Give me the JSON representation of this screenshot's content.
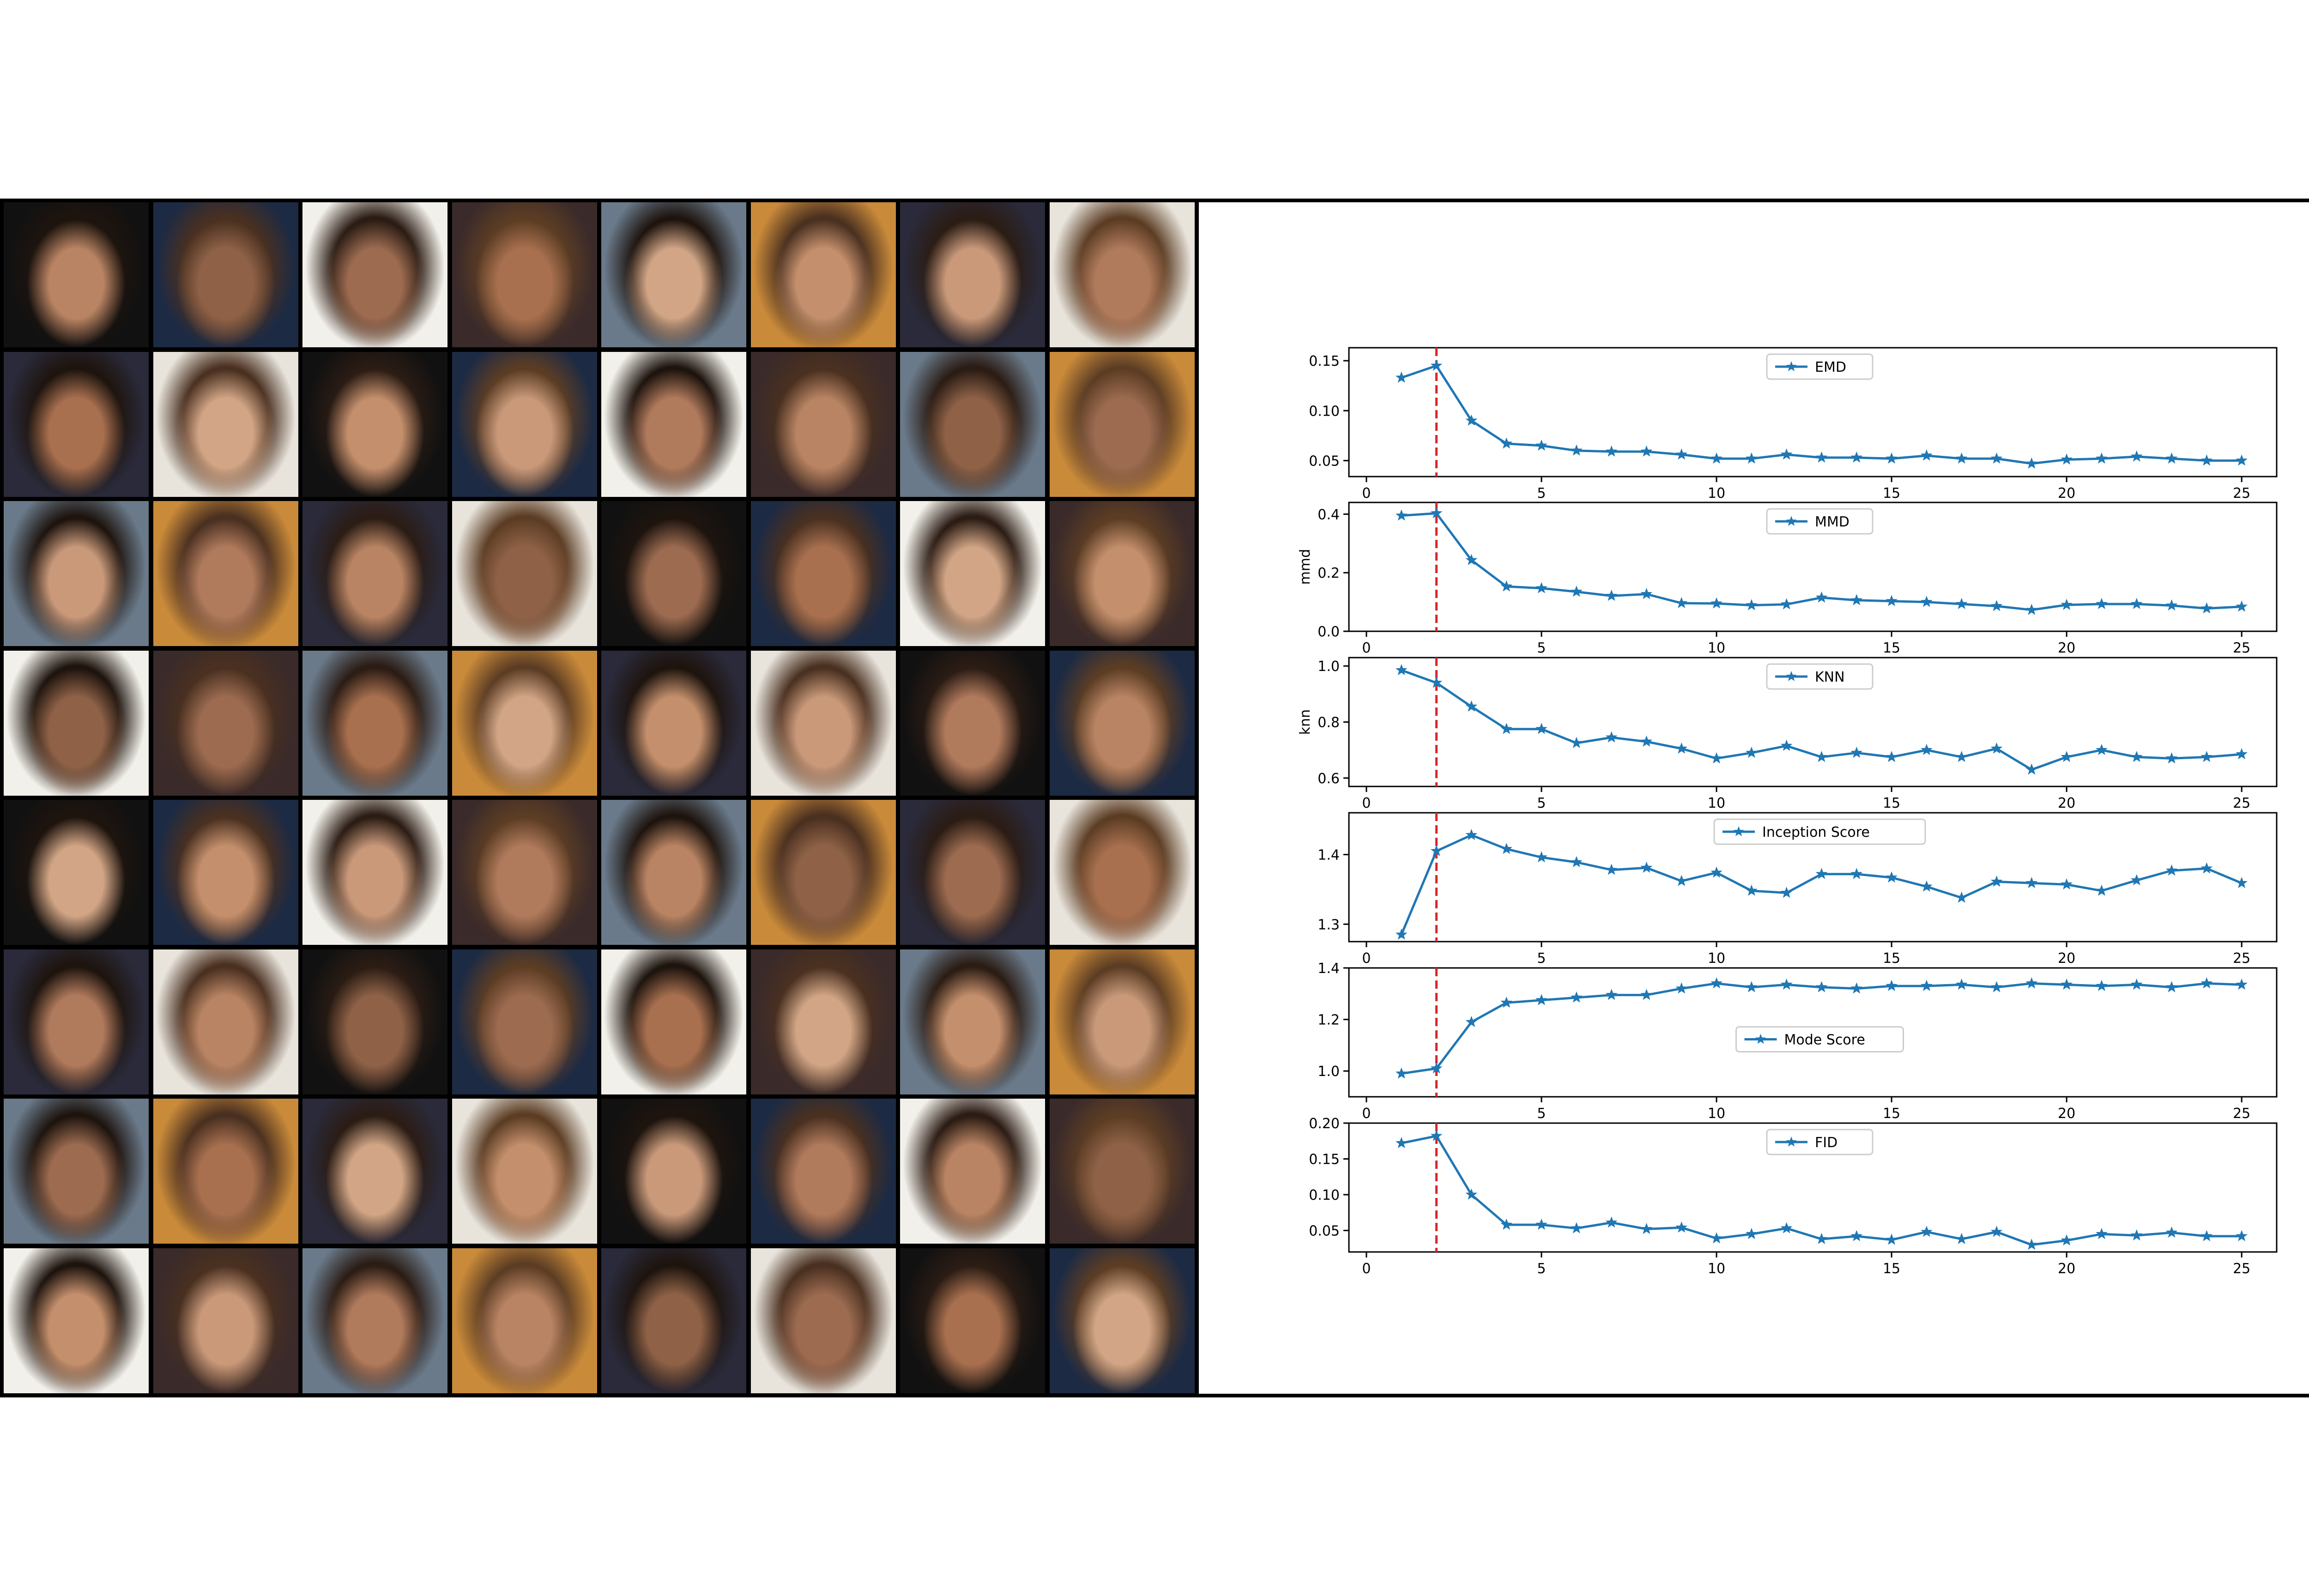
{
  "image_grid": {
    "rows": 8,
    "cols": 8,
    "subject": "generated face samples"
  },
  "colors": {
    "series": "#1f77b4",
    "marker_line": "#d62728",
    "axes": "#000000"
  },
  "chart_data": [
    {
      "type": "line",
      "legend": "EMD",
      "legend_position": "upper-center",
      "ylabel": "",
      "xticks": [
        0,
        5,
        10,
        15,
        20,
        25
      ],
      "yticks": [
        "0.05",
        "0.10",
        "0.15"
      ],
      "xlim": [
        -0.5,
        26
      ],
      "ylim": [
        0.034,
        0.163
      ],
      "marker": "star",
      "vline_x": 2,
      "x": [
        1,
        2,
        3,
        4,
        5,
        6,
        7,
        8,
        9,
        10,
        11,
        12,
        13,
        14,
        15,
        16,
        17,
        18,
        19,
        20,
        21,
        22,
        23,
        24,
        25
      ],
      "values": [
        0.133,
        0.145,
        0.09,
        0.067,
        0.065,
        0.06,
        0.059,
        0.059,
        0.056,
        0.052,
        0.052,
        0.056,
        0.053,
        0.053,
        0.052,
        0.055,
        0.052,
        0.052,
        0.047,
        0.051,
        0.052,
        0.054,
        0.052,
        0.05,
        0.05
      ]
    },
    {
      "type": "line",
      "legend": "MMD",
      "legend_position": "upper-center",
      "ylabel": "mmd",
      "xticks": [
        0,
        5,
        10,
        15,
        20,
        25
      ],
      "yticks": [
        "0.0",
        "0.2",
        "0.4"
      ],
      "xlim": [
        -0.5,
        26
      ],
      "ylim": [
        0.0,
        0.44
      ],
      "marker": "star",
      "vline_x": 2,
      "x": [
        1,
        2,
        3,
        4,
        5,
        6,
        7,
        8,
        9,
        10,
        11,
        12,
        13,
        14,
        15,
        16,
        17,
        18,
        19,
        20,
        21,
        22,
        23,
        24,
        25
      ],
      "values": [
        0.395,
        0.403,
        0.243,
        0.153,
        0.147,
        0.135,
        0.121,
        0.127,
        0.096,
        0.095,
        0.089,
        0.092,
        0.115,
        0.106,
        0.103,
        0.1,
        0.093,
        0.086,
        0.073,
        0.09,
        0.093,
        0.093,
        0.088,
        0.078,
        0.084
      ]
    },
    {
      "type": "line",
      "legend": "KNN",
      "legend_position": "upper-center",
      "ylabel": "knn",
      "xticks": [
        0,
        5,
        10,
        15,
        20,
        25
      ],
      "yticks": [
        "0.6",
        "0.8",
        "1.0"
      ],
      "xlim": [
        -0.5,
        26
      ],
      "ylim": [
        0.57,
        1.03
      ],
      "marker": "star",
      "vline_x": 2,
      "x": [
        1,
        2,
        3,
        4,
        5,
        6,
        7,
        8,
        9,
        10,
        11,
        12,
        13,
        14,
        15,
        16,
        17,
        18,
        19,
        20,
        21,
        22,
        23,
        24,
        25
      ],
      "values": [
        0.985,
        0.94,
        0.855,
        0.775,
        0.775,
        0.725,
        0.745,
        0.73,
        0.705,
        0.67,
        0.69,
        0.715,
        0.675,
        0.69,
        0.675,
        0.7,
        0.675,
        0.705,
        0.63,
        0.675,
        0.7,
        0.675,
        0.67,
        0.675,
        0.685
      ]
    },
    {
      "type": "line",
      "legend": "Inception Score",
      "legend_position": "upper-center",
      "ylabel": "",
      "xticks": [
        0,
        5,
        10,
        15,
        20,
        25
      ],
      "yticks": [
        "1.3",
        "1.4"
      ],
      "xlim": [
        -0.5,
        26
      ],
      "ylim": [
        1.275,
        1.46
      ],
      "marker": "star",
      "vline_x": 2,
      "x": [
        1,
        2,
        3,
        4,
        5,
        6,
        7,
        8,
        9,
        10,
        11,
        12,
        13,
        14,
        15,
        16,
        17,
        18,
        19,
        20,
        21,
        22,
        23,
        24,
        25
      ],
      "values": [
        1.285,
        1.405,
        1.428,
        1.408,
        1.396,
        1.389,
        1.378,
        1.381,
        1.362,
        1.374,
        1.348,
        1.345,
        1.372,
        1.372,
        1.367,
        1.354,
        1.338,
        1.361,
        1.359,
        1.357,
        1.348,
        1.363,
        1.377,
        1.38,
        1.359
      ]
    },
    {
      "type": "line",
      "legend": "Mode Score",
      "legend_position": "center",
      "ylabel": "",
      "xticks": [
        0,
        5,
        10,
        15,
        20,
        25
      ],
      "yticks": [
        "1.0",
        "1.2",
        "1.4"
      ],
      "xlim": [
        -0.5,
        26
      ],
      "ylim": [
        0.9,
        1.4
      ],
      "marker": "star",
      "vline_x": 2,
      "x": [
        1,
        2,
        3,
        4,
        5,
        6,
        7,
        8,
        9,
        10,
        11,
        12,
        13,
        14,
        15,
        16,
        17,
        18,
        19,
        20,
        21,
        22,
        23,
        24,
        25
      ],
      "values": [
        0.99,
        1.01,
        1.19,
        1.265,
        1.275,
        1.285,
        1.295,
        1.295,
        1.32,
        1.34,
        1.325,
        1.335,
        1.325,
        1.32,
        1.33,
        1.33,
        1.335,
        1.325,
        1.34,
        1.335,
        1.33,
        1.335,
        1.325,
        1.34,
        1.335
      ]
    },
    {
      "type": "line",
      "legend": "FID",
      "legend_position": "upper-center",
      "ylabel": "",
      "xticks": [
        0,
        5,
        10,
        15,
        20,
        25
      ],
      "yticks": [
        "0.05",
        "0.10",
        "0.15",
        "0.20"
      ],
      "xlim": [
        -0.5,
        26
      ],
      "ylim": [
        0.02,
        0.2
      ],
      "marker": "star",
      "vline_x": 2,
      "x": [
        1,
        2,
        3,
        4,
        5,
        6,
        7,
        8,
        9,
        10,
        11,
        12,
        13,
        14,
        15,
        16,
        17,
        18,
        19,
        20,
        21,
        22,
        23,
        24,
        25
      ],
      "values": [
        0.172,
        0.182,
        0.1,
        0.058,
        0.058,
        0.053,
        0.061,
        0.052,
        0.054,
        0.039,
        0.045,
        0.053,
        0.038,
        0.042,
        0.037,
        0.048,
        0.038,
        0.048,
        0.03,
        0.036,
        0.045,
        0.043,
        0.047,
        0.042,
        0.042
      ]
    }
  ]
}
